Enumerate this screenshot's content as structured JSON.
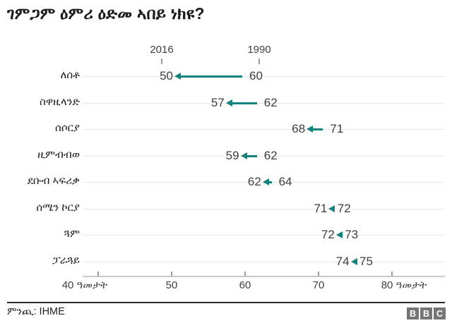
{
  "title": "ገምጋም ዕምሪ ዕድመ ኣበይ ነክዩ?",
  "colors": {
    "accent": "#12827c",
    "logo_gray": "#757575",
    "gridline": "#e9e9e9",
    "axis_line": "#c9c9c9"
  },
  "chart_data": {
    "type": "arrow",
    "title": "ገምጋም ዕምሪ ዕድመ ኣበይ ነክዩ?",
    "column_headers": {
      "new": "2016",
      "old": "1990"
    },
    "categories": [
      "ለሰቶ",
      "ስዋዚላንድ",
      "ሰሶርያ",
      "ዚምብብወ",
      "ደቡብ ኣፍሪቃ",
      "ሰሜን ኮርያ",
      "ጓም",
      "ፓራጓይ"
    ],
    "series": [
      {
        "name": "2016",
        "values": [
          50,
          57,
          68,
          59,
          62,
          71,
          72,
          74
        ]
      },
      {
        "name": "1990",
        "values": [
          60,
          62,
          71,
          62,
          64,
          72,
          73,
          75
        ]
      }
    ],
    "axis": {
      "ticks": [
        40,
        50,
        60,
        70,
        80
      ],
      "tick_labels": [
        "40 ዓመታት",
        "50",
        "60",
        "70",
        "80 ዓመታት"
      ],
      "xlim": [
        40,
        87
      ],
      "grid": "horizontal-row-lines",
      "legend_position": "column-headers-above-first-row"
    }
  },
  "footer": {
    "source": "ምንጪ: IHME",
    "logo_letters": [
      "B",
      "B",
      "C"
    ]
  }
}
